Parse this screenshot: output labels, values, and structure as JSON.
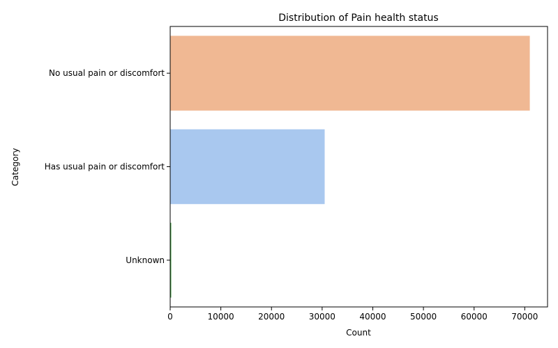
{
  "chart_data": {
    "type": "bar",
    "orientation": "horizontal",
    "title": "Distribution of Pain health status",
    "xlabel": "Count",
    "ylabel": "Category",
    "categories": [
      "No usual pain or discomfort",
      "Has usual pain or discomfort",
      "Unknown"
    ],
    "values": [
      71000,
      30500,
      200
    ],
    "colors": [
      "#f0b893",
      "#a9c8ef",
      "#3a9a3a"
    ],
    "xlim": [
      0,
      74500
    ],
    "xticks": [
      0,
      10000,
      20000,
      30000,
      40000,
      50000,
      60000,
      70000
    ],
    "xtick_labels": [
      "0",
      "10000",
      "20000",
      "30000",
      "40000",
      "50000",
      "60000",
      "70000"
    ],
    "grid": false,
    "legend": false
  }
}
